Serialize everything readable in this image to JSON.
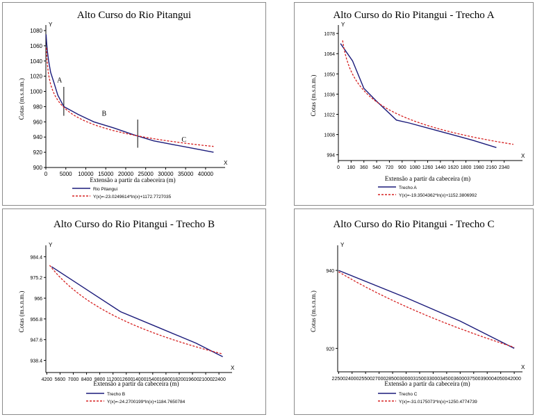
{
  "chart_data": [
    {
      "type": "line",
      "title": "Alto Curso do Rio Pitangui",
      "xlabel": "Extensão a partir da cabeceira (m)",
      "ylabel": "Cotas (m.s.n.m.)",
      "x_axis_letter": "X",
      "y_axis_letter": "Y",
      "xlim": [
        0,
        43500
      ],
      "ylim": [
        900,
        1080
      ],
      "x_ticks": [
        0,
        5000,
        10000,
        15000,
        20000,
        25000,
        30000,
        35000,
        40000
      ],
      "x_tick_labels": [
        "0",
        "5000",
        "10000",
        "15000",
        "20000",
        "25000",
        "30000",
        "35000",
        "40000"
      ],
      "y_ticks": [
        900,
        920,
        940,
        960,
        980,
        1000,
        1020,
        1040,
        1060,
        1080
      ],
      "y_tick_labels": [
        "900",
        "920",
        "940",
        "960",
        "980",
        "1000",
        "1020",
        "1040",
        "1060",
        "1080"
      ],
      "annotations": [
        {
          "text": "A",
          "x": 2800,
          "y": 1012
        },
        {
          "text": "B",
          "x": 14000,
          "y": 968
        },
        {
          "text": "C",
          "x": 34000,
          "y": 934
        }
      ],
      "markers_x": [
        4500,
        23000
      ],
      "series": [
        {
          "name": "Rio Pitangui",
          "color": "#1a1a7a",
          "style": "solid",
          "x": [
            50,
            200,
            400,
            700,
            1200,
            2000,
            3000,
            4500,
            8000,
            12000,
            17000,
            22000,
            27000,
            32000,
            37000,
            42000
          ],
          "y": [
            1075,
            1064,
            1052,
            1040,
            1025,
            1012,
            995,
            980,
            970,
            960,
            952,
            943,
            935,
            930,
            925,
            920
          ]
        },
        {
          "name": "Y(x)=-23.0249614*ln(x)+1172.7727035",
          "color": "#d62020",
          "style": "dashed",
          "formula": {
            "a": -23.0249614,
            "b": 1172.7727035,
            "x0": 150,
            "x1": 42000
          }
        }
      ]
    },
    {
      "type": "line",
      "title": "Alto Curso do Rio Pitangui - Trecho A",
      "xlabel": "Extensão a partir da cabeceira (m)",
      "ylabel": "Cotas (m.s.n.m.)",
      "x_axis_letter": "X",
      "y_axis_letter": "Y",
      "xlim": [
        0,
        2520
      ],
      "ylim": [
        990,
        1080
      ],
      "x_ticks": [
        0,
        180,
        360,
        540,
        720,
        900,
        1080,
        1260,
        1440,
        1620,
        1800,
        1980,
        2160,
        2340
      ],
      "x_tick_labels": [
        "0",
        "180",
        "360",
        "540",
        "720",
        "900",
        "1080",
        "1260",
        "1440",
        "1620",
        "1800",
        "1980",
        "2160",
        "2340"
      ],
      "y_ticks": [
        994,
        1008,
        1022,
        1036,
        1050,
        1064,
        1078
      ],
      "y_tick_labels": [
        "994",
        "1008",
        "1022",
        "1036",
        "1050",
        "1064",
        "1078"
      ],
      "series": [
        {
          "name": "Trecho A",
          "color": "#1a1a7a",
          "style": "solid",
          "x": [
            30,
            200,
            360,
            540,
            820,
            1000,
            1300,
            1600,
            1900,
            2230
          ],
          "y": [
            1071,
            1059,
            1040,
            1031,
            1018,
            1016,
            1012,
            1008,
            1004,
            999
          ]
        },
        {
          "name": "Y(x)=-19.3504362*ln(x)+1152.3806992",
          "color": "#d62020",
          "style": "dashed",
          "formula": {
            "a": -19.3504362,
            "b": 1152.3806992,
            "x0": 60,
            "x1": 2470
          }
        }
      ]
    },
    {
      "type": "line",
      "title": "Alto Curso do Rio Pitangui - Trecho B",
      "xlabel": "Extensão a partir da cabeceira (m)",
      "ylabel": "Cotas (m.s.n.m.)",
      "x_axis_letter": "X",
      "y_axis_letter": "Y",
      "xlim": [
        4100,
        23200
      ],
      "ylim": [
        933,
        987
      ],
      "x_ticks": [
        4200,
        5600,
        7000,
        8400,
        9800,
        11200,
        12600,
        14000,
        15400,
        16800,
        18200,
        19600,
        21000,
        22400
      ],
      "x_tick_labels": [
        "4200",
        "5600",
        "7000",
        "8400",
        "9800",
        "11200",
        "12600",
        "14000",
        "15400",
        "16800",
        "18200",
        "19600",
        "21000",
        "22400"
      ],
      "y_ticks": [
        938.4,
        947.6,
        956.8,
        966,
        975.2,
        984.4
      ],
      "y_tick_labels": [
        "938.4",
        "947.6",
        "956.8",
        "966",
        "975.2",
        "984.4"
      ],
      "series": [
        {
          "name": "Trecho B",
          "color": "#1a1a7a",
          "style": "solid",
          "x": [
            4700,
            12000,
            16000,
            20000,
            22800
          ],
          "y": [
            980,
            960,
            953,
            946,
            940
          ]
        },
        {
          "name": "Y(x)=-24.2700199*ln(x)+1184.7650784",
          "color": "#d62020",
          "style": "dashed",
          "formula": {
            "a": -24.2700199,
            "b": 1184.7650784,
            "x0": 4500,
            "x1": 22800
          }
        }
      ]
    },
    {
      "type": "line",
      "title": "Alto Curso do Rio Pitangui - Trecho C",
      "xlabel": "Extensão a partir da cabeceira (m)",
      "ylabel": "Cotas (m.s.n.m.)",
      "x_axis_letter": "X",
      "y_axis_letter": "Y",
      "xlim": [
        22400,
        42300
      ],
      "ylim": [
        914,
        945
      ],
      "x_ticks": [
        22500,
        24000,
        25500,
        27000,
        28500,
        30000,
        31500,
        33000,
        34500,
        36000,
        37500,
        39000,
        40500,
        42000
      ],
      "x_tick_labels": [
        "22500",
        "24000",
        "25500",
        "27000",
        "28500",
        "30000",
        "31500",
        "33000",
        "34500",
        "36000",
        "37500",
        "39000",
        "40500",
        "42000"
      ],
      "y_ticks": [
        920,
        940
      ],
      "y_tick_labels": [
        "920",
        "940"
      ],
      "series": [
        {
          "name": "Trecho C",
          "color": "#1a1a7a",
          "style": "solid",
          "x": [
            22500,
            30000,
            36000,
            42000
          ],
          "y": [
            940,
            933,
            927,
            920
          ]
        },
        {
          "name": "Y(x)=-31.0175073*ln(x)+1250.4774739",
          "color": "#d62020",
          "style": "dashed",
          "formula": {
            "a": -31.0175073,
            "b": 1250.4774739,
            "x0": 22500,
            "x1": 42000
          }
        }
      ]
    }
  ]
}
